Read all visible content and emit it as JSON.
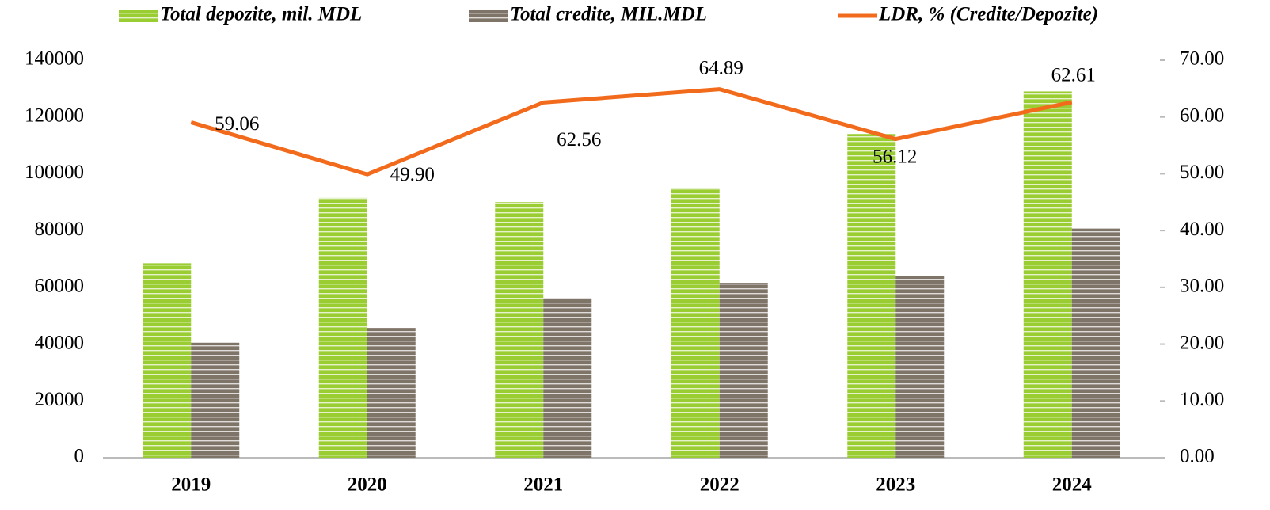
{
  "chart_data": {
    "type": "bar_line",
    "categories": [
      "2019",
      "2020",
      "2021",
      "2022",
      "2023",
      "2024"
    ],
    "series": [
      {
        "name": "Total depozite, mil. MDL",
        "type": "bar",
        "color": "#9acd32",
        "values": [
          68500,
          91500,
          90000,
          95000,
          114000,
          129000
        ]
      },
      {
        "name": "Total credite, MIL.MDL",
        "type": "bar",
        "color": "#7f7468",
        "values": [
          40500,
          45700,
          56300,
          61600,
          64000,
          80700
        ]
      },
      {
        "name": "LDR, % (Credite/Depozite)",
        "type": "line",
        "axis": "y2",
        "color": "#f26a1b",
        "values": [
          59.06,
          49.9,
          62.56,
          64.89,
          56.12,
          62.61
        ],
        "value_labels": [
          "59.06",
          "49.90",
          "62.56",
          "64.89",
          "56.12",
          "62.61"
        ]
      }
    ],
    "ylim": [
      0,
      140000
    ],
    "yticks": [
      0,
      20000,
      40000,
      60000,
      80000,
      100000,
      120000,
      140000
    ],
    "y2lim": [
      0,
      70
    ],
    "y2ticks": [
      {
        "value": 0,
        "label": "0.00"
      },
      {
        "value": 10,
        "label": "10.00"
      },
      {
        "value": 20,
        "label": "20.00"
      },
      {
        "value": 30,
        "label": "30.00"
      },
      {
        "value": 40,
        "label": "40.00"
      },
      {
        "value": 50,
        "label": "50.00"
      },
      {
        "value": 60,
        "label": "60.00"
      },
      {
        "value": 70,
        "label": "70.00"
      }
    ],
    "legend": "top",
    "grid": false
  }
}
